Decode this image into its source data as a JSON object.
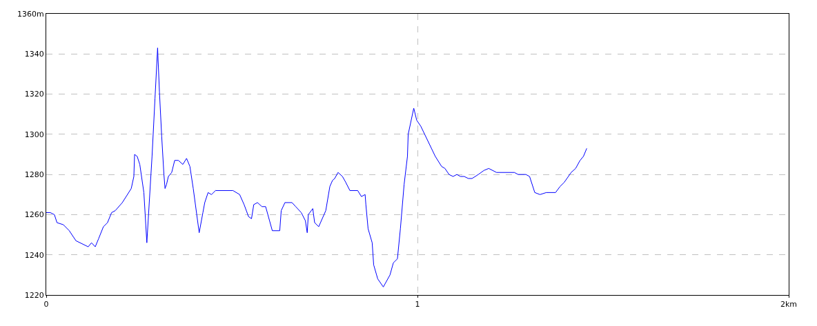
{
  "chart_data": {
    "type": "line",
    "xlim": [
      0,
      2
    ],
    "xticks": [
      0,
      1,
      {
        "value": 2,
        "label": "2km"
      }
    ],
    "ylim": [
      1220,
      1360
    ],
    "yticks": [
      1220,
      1240,
      1260,
      1280,
      1300,
      1320,
      1340,
      {
        "value": 1360,
        "label": "1360m"
      }
    ],
    "grid": true,
    "marker": "none",
    "line_style": "solid",
    "series": [
      {
        "color": "#0000ff",
        "x": [
          0,
          0.011,
          0.022,
          0.029,
          0.046,
          0.062,
          0.08,
          0.113,
          0.122,
          0.132,
          0.141,
          0.154,
          0.165,
          0.176,
          0.186,
          0.205,
          0.229,
          0.236,
          0.238,
          0.245,
          0.252,
          0.263,
          0.271,
          0.285,
          0.293,
          0.3,
          0.305,
          0.311,
          0.317,
          0.32,
          0.324,
          0.329,
          0.338,
          0.346,
          0.356,
          0.368,
          0.378,
          0.387,
          0.396,
          0.412,
          0.422,
          0.427,
          0.436,
          0.445,
          0.456,
          0.503,
          0.521,
          0.533,
          0.545,
          0.553,
          0.559,
          0.569,
          0.581,
          0.591,
          0.609,
          0.629,
          0.633,
          0.643,
          0.662,
          0.672,
          0.687,
          0.698,
          0.703,
          0.706,
          0.718,
          0.723,
          0.734,
          0.753,
          0.764,
          0.771,
          0.777,
          0.786,
          0.798,
          0.807,
          0.818,
          0.839,
          0.849,
          0.859,
          0.861,
          0.867,
          0.878,
          0.882,
          0.893,
          0.908,
          0.926,
          0.935,
          0.946,
          0.954,
          0.964,
          0.973,
          0.975,
          0.99,
          0.998,
          1.009,
          1.048,
          1.065,
          1.074,
          1.085,
          1.096,
          1.106,
          1.116,
          1.126,
          1.137,
          1.147,
          1.164,
          1.179,
          1.192,
          1.213,
          1.261,
          1.271,
          1.292,
          1.302,
          1.316,
          1.33,
          1.347,
          1.372,
          1.384,
          1.395,
          1.414,
          1.426,
          1.438,
          1.447,
          1.456
        ],
        "values": [
          1261,
          1261,
          1260,
          1256,
          1255,
          1252,
          1247,
          1244,
          1246,
          1244,
          1248,
          1254,
          1256,
          1261,
          1262,
          1266,
          1273,
          1279,
          1290,
          1289,
          1285,
          1271,
          1246,
          1289,
          1318,
          1343,
          1321,
          1299,
          1280,
          1273,
          1275,
          1279,
          1281,
          1287,
          1287,
          1285,
          1288,
          1284,
          1273,
          1251,
          1261,
          1266,
          1271,
          1270,
          1272,
          1272,
          1270,
          1265,
          1259,
          1258,
          1265,
          1266,
          1264,
          1264,
          1252,
          1252,
          1262,
          1266,
          1266,
          1264,
          1261,
          1257,
          1251,
          1260,
          1263,
          1256,
          1254,
          1262,
          1274,
          1277,
          1278,
          1281,
          1279,
          1276,
          1272,
          1272,
          1269,
          1270,
          1265,
          1253,
          1246,
          1235,
          1228,
          1224,
          1230,
          1236,
          1238,
          1253,
          1275,
          1289,
          1300,
          1313,
          1307,
          1304,
          1289,
          1284,
          1283,
          1280,
          1279,
          1280,
          1279,
          1279,
          1278,
          1278,
          1280,
          1282,
          1283,
          1281,
          1281,
          1280,
          1280,
          1279,
          1271,
          1270,
          1271,
          1271,
          1274,
          1276,
          1281,
          1283,
          1287,
          1289,
          1293
        ]
      }
    ]
  }
}
